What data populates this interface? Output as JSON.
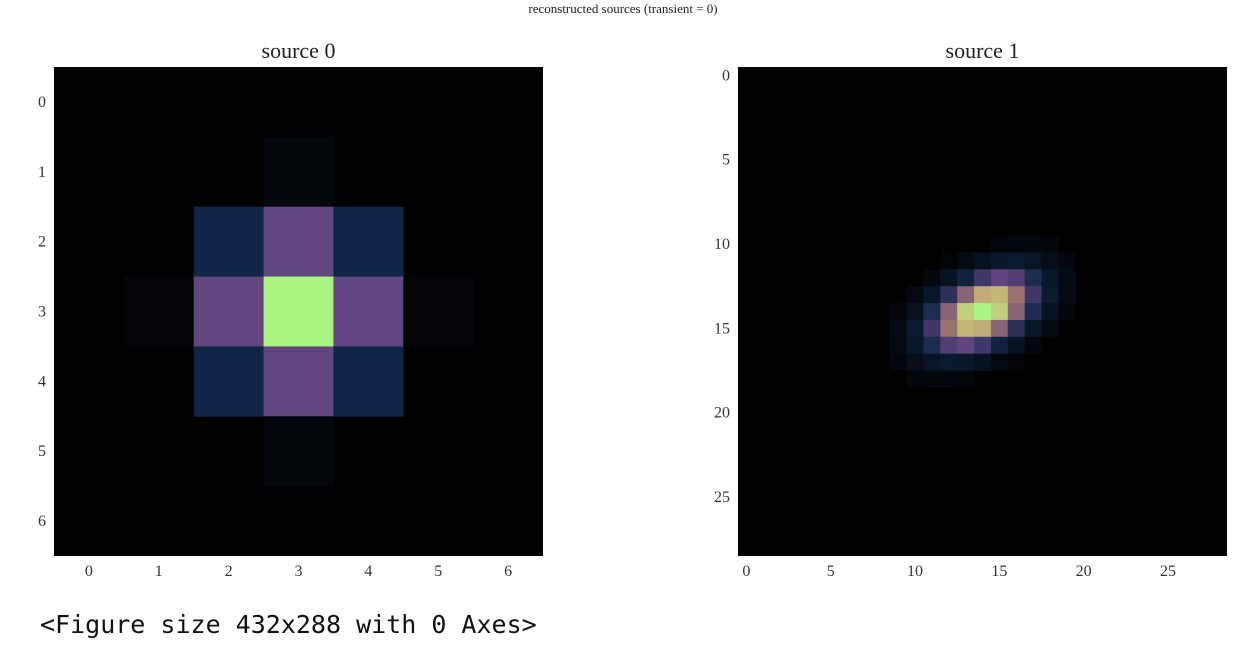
{
  "figure_title": "reconstructed sources (transient = 0)",
  "console_output": "<Figure size 432x288 with 0 Axes>",
  "chart_data": [
    {
      "type": "heatmap",
      "title": "source 0",
      "colormap": "dark-rgb (black → navy → purple → green)",
      "grid_size": [
        7,
        7
      ],
      "x_ticks": [
        0,
        1,
        2,
        3,
        4,
        5,
        6
      ],
      "y_ticks": [
        0,
        1,
        2,
        3,
        4,
        5,
        6
      ],
      "values": [
        [
          0,
          0,
          0,
          0,
          0,
          0,
          0
        ],
        [
          0,
          0,
          0,
          0.03,
          0,
          0,
          0
        ],
        [
          0,
          0,
          0.25,
          0.45,
          0.25,
          0,
          0
        ],
        [
          0,
          0.02,
          0.45,
          1.0,
          0.45,
          0.02,
          0
        ],
        [
          0,
          0,
          0.25,
          0.45,
          0.25,
          0,
          0
        ],
        [
          0,
          0,
          0,
          0.03,
          0,
          0,
          0
        ],
        [
          0,
          0,
          0,
          0,
          0,
          0,
          0
        ]
      ]
    },
    {
      "type": "heatmap",
      "title": "source 1",
      "colormap": "dark-rgb (black → navy → purple → tan → green)",
      "grid_size": [
        29,
        29
      ],
      "x_ticks": [
        0,
        5,
        10,
        15,
        20,
        25
      ],
      "y_ticks": [
        0,
        5,
        10,
        15,
        20,
        25
      ],
      "blob": {
        "center_x": 14,
        "center_y": 14,
        "sigma_major": 2.3,
        "sigma_minor": 1.3,
        "angle_deg": 62
      }
    }
  ]
}
